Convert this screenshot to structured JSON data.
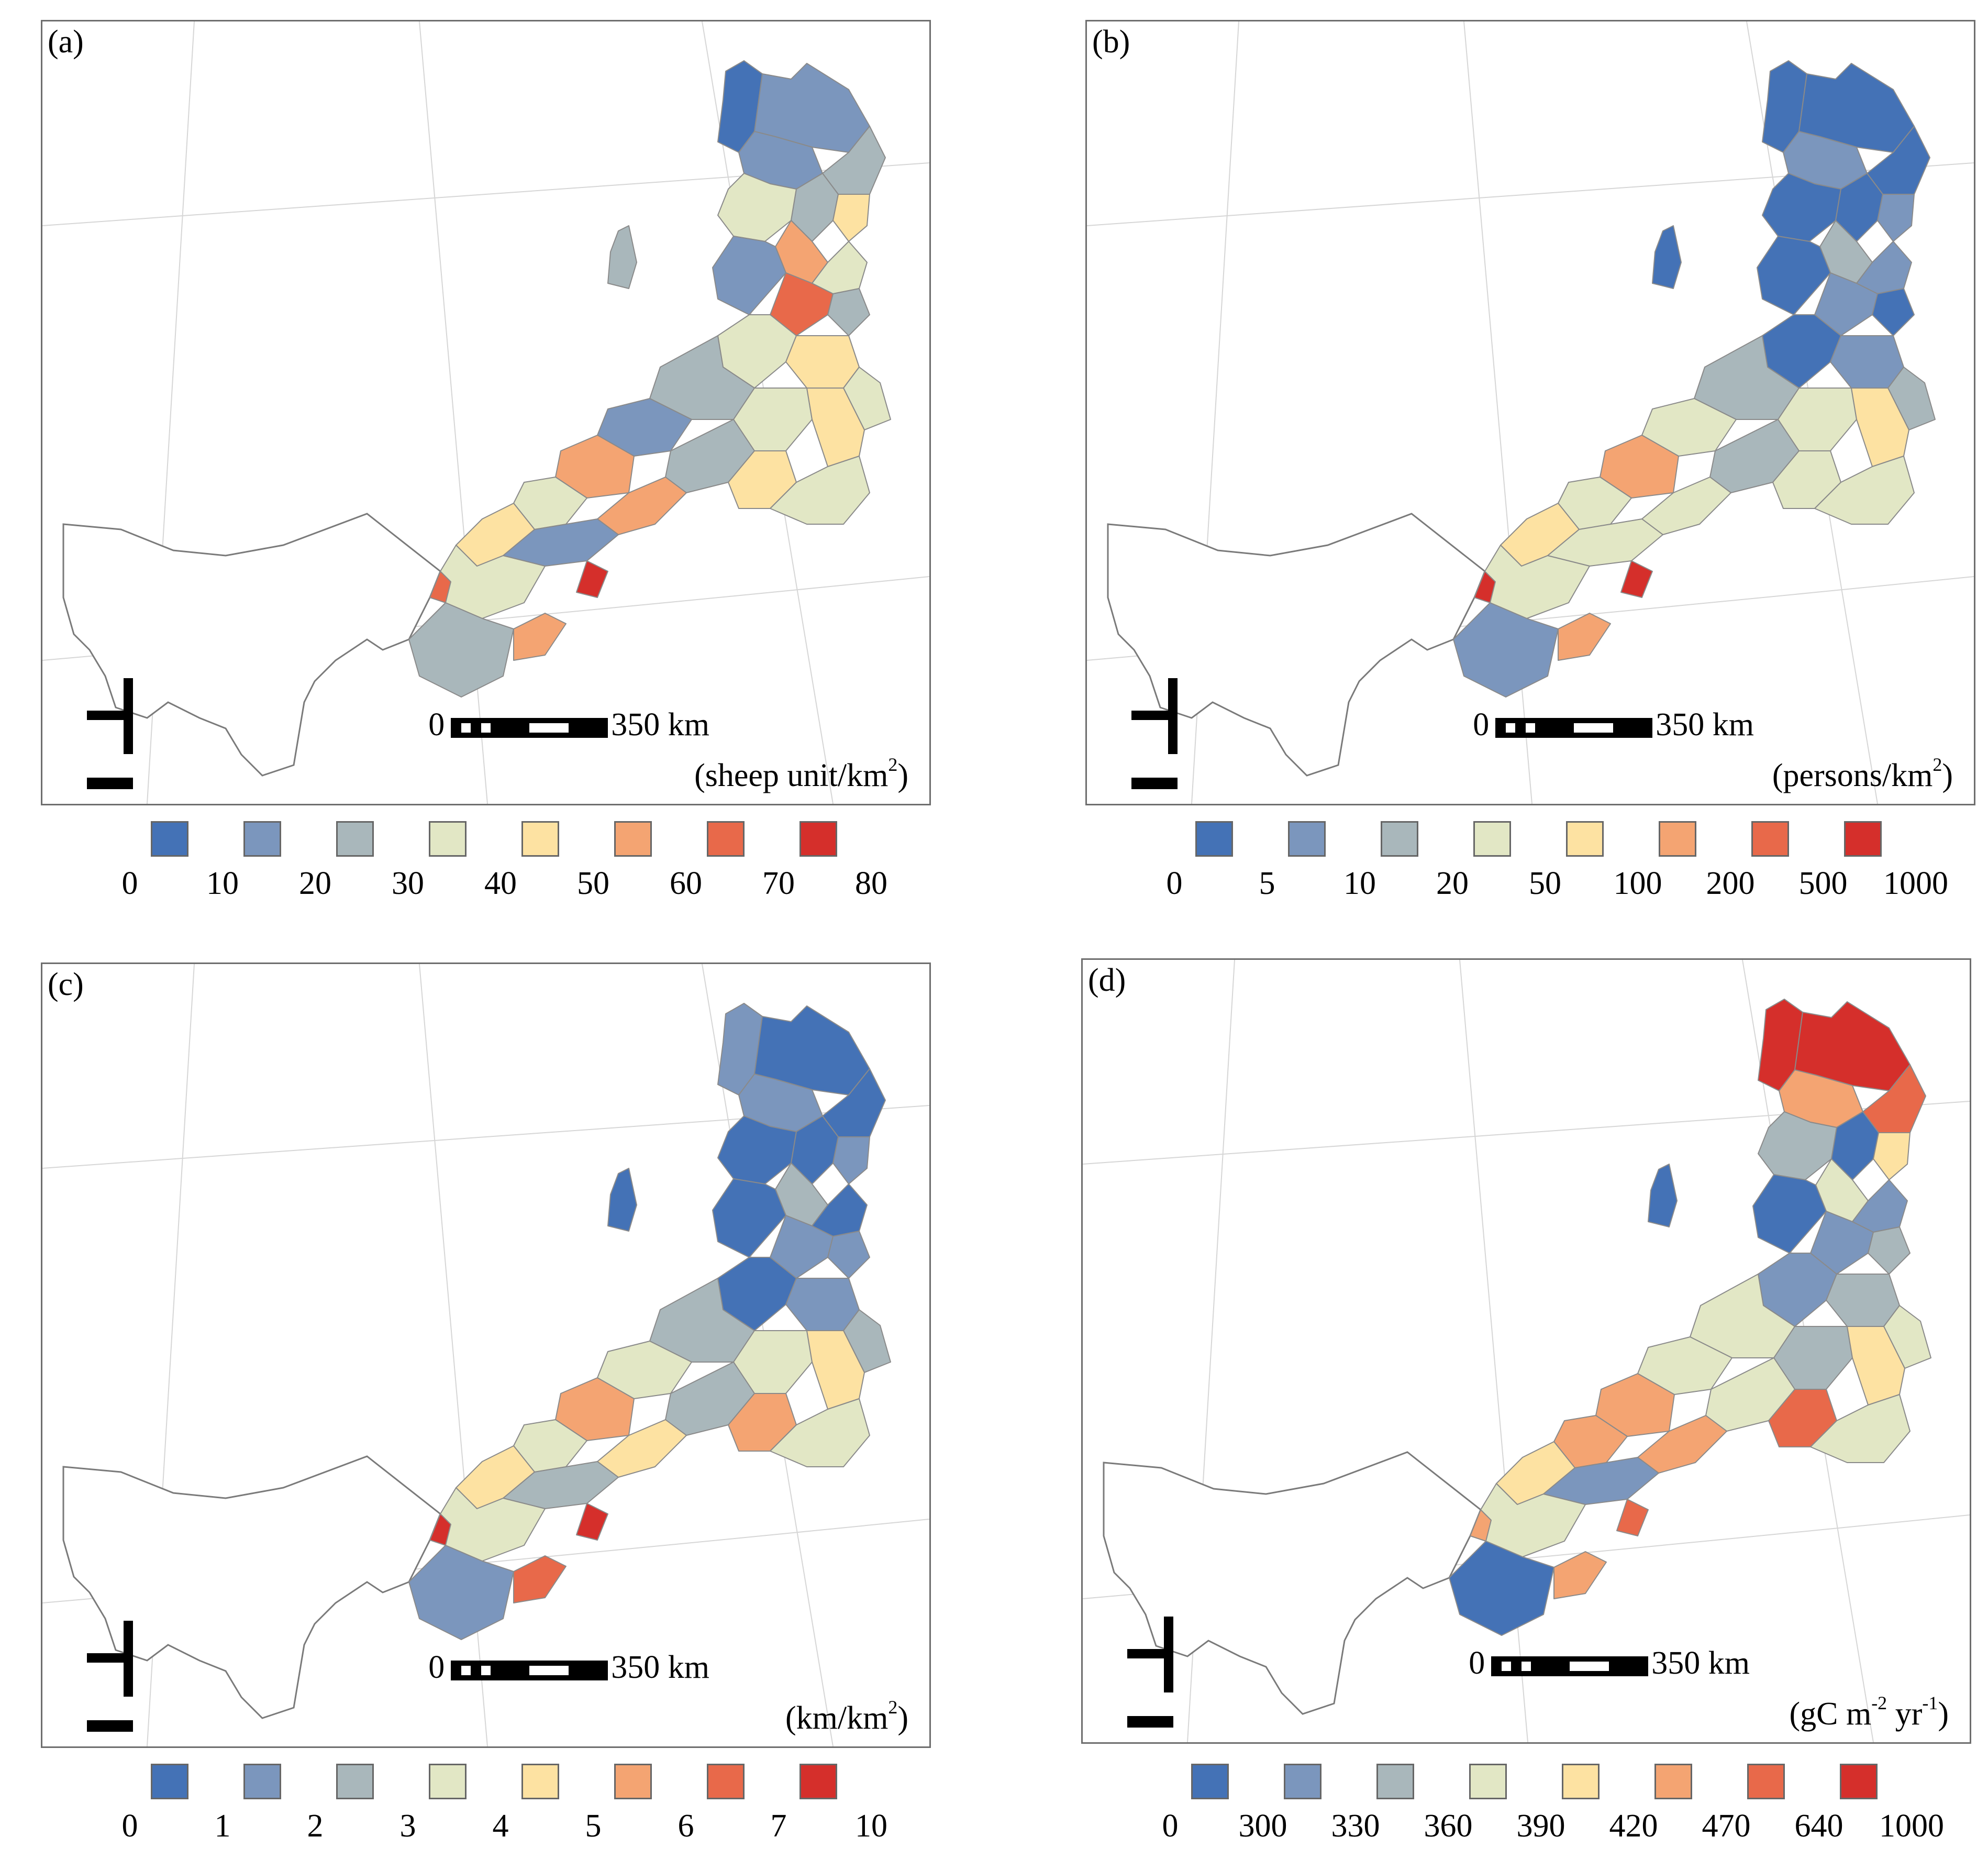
{
  "palette": [
    "#4472b6",
    "#7b96bd",
    "#a9b7bb",
    "#e2e7c5",
    "#fde2a2",
    "#f4a472",
    "#e8694a",
    "#d52f2b"
  ],
  "panels": [
    {
      "label": "(a)",
      "unit_text": "(sheep unit/km",
      "unit_sup": "2",
      "unit_tail": ")",
      "scale_zero": "0",
      "scale_end": "350 km",
      "legend_ticks": [
        "0",
        "10",
        "20",
        "30",
        "40",
        "50",
        "60",
        "70",
        "80"
      ],
      "region_classes": [
        1,
        2,
        3,
        2,
        3,
        4,
        3,
        5,
        6,
        2,
        4,
        7,
        3,
        4,
        5,
        4,
        3,
        2,
        4,
        5,
        6,
        4,
        3,
        6,
        5,
        4,
        5,
        2,
        4,
        3,
        8,
        7,
        6
      ]
    },
    {
      "label": "(b)",
      "unit_text": "(persons/km",
      "unit_sup": "2",
      "unit_tail": ")",
      "scale_zero": "0",
      "scale_end": "350 km",
      "legend_ticks": [
        "0",
        "5",
        "10",
        "20",
        "50",
        "100",
        "200",
        "500",
        "1000"
      ],
      "region_classes": [
        1,
        1,
        1,
        2,
        1,
        1,
        1,
        2,
        3,
        1,
        2,
        2,
        1,
        1,
        2,
        3,
        3,
        4,
        4,
        5,
        6,
        4,
        3,
        4,
        4,
        4,
        5,
        4,
        4,
        2,
        8,
        8,
        6
      ]
    },
    {
      "label": "(c)",
      "unit_text": "(km/km",
      "unit_sup": "2",
      "unit_tail": ")",
      "scale_zero": "0",
      "scale_end": "350 km",
      "legend_ticks": [
        "0",
        "1",
        "2",
        "3",
        "4",
        "5",
        "6",
        "7",
        "10"
      ],
      "region_classes": [
        2,
        1,
        1,
        2,
        1,
        1,
        1,
        2,
        3,
        1,
        1,
        2,
        2,
        1,
        2,
        3,
        3,
        4,
        4,
        5,
        6,
        4,
        3,
        5,
        6,
        4,
        5,
        3,
        4,
        2,
        8,
        8,
        7
      ]
    },
    {
      "label": "(d)",
      "unit_text": "(gC m",
      "unit_sup": "-2",
      "unit_mid": " yr",
      "unit_sup2": "-1",
      "unit_tail": ")",
      "scale_zero": "0",
      "scale_end": "350 km",
      "legend_ticks": [
        "0",
        "300",
        "330",
        "360",
        "390",
        "420",
        "470",
        "640",
        "1000"
      ],
      "region_classes": [
        8,
        8,
        7,
        6,
        1,
        3,
        1,
        5,
        4,
        1,
        2,
        2,
        3,
        2,
        3,
        4,
        4,
        4,
        3,
        5,
        6,
        6,
        4,
        6,
        7,
        4,
        5,
        2,
        4,
        1,
        7,
        6,
        6
      ]
    }
  ]
}
